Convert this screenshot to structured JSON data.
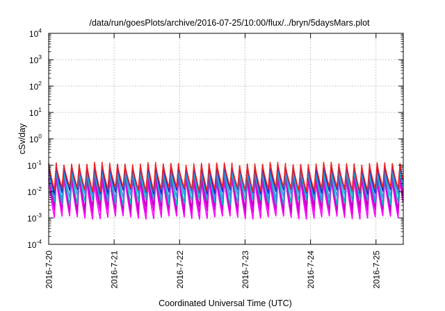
{
  "chart_data": {
    "type": "line",
    "title": "/data/run/goesPlots/archive/2016-07-25/10:00/flux/../bryn/5daysMars.plot",
    "xlabel": "Coordinated Universal Time (UTC)",
    "ylabel": "cSv/day",
    "yscale": "log",
    "ylim": [
      0.0001,
      10000
    ],
    "y_ticks": [
      {
        "base": "10",
        "exp": "4"
      },
      {
        "base": "10",
        "exp": "3"
      },
      {
        "base": "10",
        "exp": "2"
      },
      {
        "base": "10",
        "exp": "1"
      },
      {
        "base": "10",
        "exp": "0"
      },
      {
        "base": "10",
        "exp": "-1"
      },
      {
        "base": "10",
        "exp": "-2"
      },
      {
        "base": "10",
        "exp": "-3"
      },
      {
        "base": "10",
        "exp": "-4"
      }
    ],
    "x_ticks": [
      "2016-7-20",
      "2016-7-21",
      "2016-7-22",
      "2016-7-23",
      "2016-7-24",
      "2016-7-25"
    ],
    "xlim": [
      "2016-07-20 00:00",
      "2016-07-25 10:00"
    ],
    "grid": true,
    "pattern": "sawtooth repeating about every 2.8 hours",
    "series": [
      {
        "color": "#ff00ff",
        "peak_range": [
          0.02,
          0.04
        ],
        "trough_range": [
          0.0009,
          0.0012
        ]
      },
      {
        "color": "#dd00dd",
        "peak_range": [
          0.03,
          0.05
        ],
        "trough_range": [
          0.0015,
          0.002
        ]
      },
      {
        "color": "#c000c0",
        "peak_range": [
          0.04,
          0.06
        ],
        "trough_range": [
          0.002,
          0.003
        ]
      },
      {
        "color": "#00bbbb",
        "peak_range": [
          0.05,
          0.07
        ],
        "trough_range": [
          0.003,
          0.005
        ]
      },
      {
        "color": "#3399ee",
        "peak_range": [
          0.06,
          0.09
        ],
        "trough_range": [
          0.005,
          0.008
        ]
      },
      {
        "color": "#2222cc",
        "peak_range": [
          0.08,
          0.11
        ],
        "trough_range": [
          0.008,
          0.012
        ]
      },
      {
        "color": "#ee2222",
        "peak_range": [
          0.09,
          0.13
        ],
        "trough_range": [
          0.01,
          0.015
        ]
      }
    ]
  }
}
